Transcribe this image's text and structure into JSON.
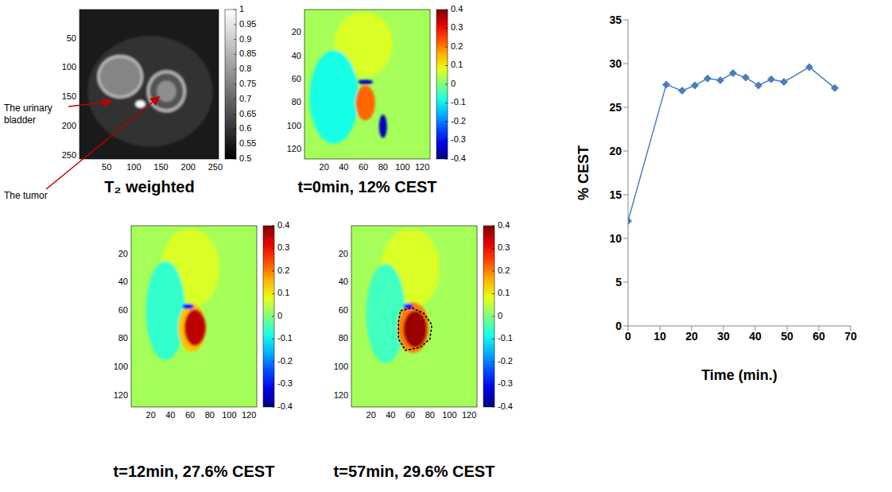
{
  "chart_data": [
    {
      "type": "image",
      "caption": "T₂ weighted",
      "color": "gray",
      "xlim": [
        0,
        256
      ],
      "ylim": [
        0,
        256
      ],
      "xticks": [
        50,
        100,
        150,
        200,
        250
      ],
      "yticks": [
        50,
        100,
        150,
        200,
        250
      ],
      "background": 0.55,
      "regions": [
        {
          "cx": 130,
          "cy": 140,
          "rx": 115,
          "ry": 95,
          "value": 0.6
        },
        {
          "cx": 75,
          "cy": 115,
          "rx": 42,
          "ry": 37,
          "value": 0.88
        },
        {
          "cx": 75,
          "cy": 115,
          "rx": 38,
          "ry": 33,
          "value": 0.76
        },
        {
          "cx": 160,
          "cy": 140,
          "rx": 36,
          "ry": 36,
          "value": 0.86
        },
        {
          "cx": 160,
          "cy": 140,
          "rx": 31,
          "ry": 31,
          "value": 0.66
        },
        {
          "cx": 160,
          "cy": 140,
          "rx": 18,
          "ry": 18,
          "value": 0.78
        },
        {
          "cx": 112,
          "cy": 162,
          "rx": 9,
          "ry": 6,
          "value": 1
        }
      ],
      "colorbar": {
        "range": [
          0.5,
          1
        ],
        "ticks": [
          0.5,
          0.55,
          0.6,
          0.65,
          0.7,
          0.75,
          0.8,
          0.85,
          0.9,
          0.95,
          1
        ]
      },
      "annotations": [
        "The urinary bladder",
        "The tumor"
      ]
    },
    {
      "type": "image",
      "caption": "t=0min, 12% CEST",
      "color": "jet",
      "xlim": [
        0,
        128
      ],
      "ylim": [
        0,
        128
      ],
      "xticks": [
        20,
        40,
        60,
        80,
        100,
        120
      ],
      "yticks": [
        20,
        40,
        60,
        80,
        100,
        120
      ],
      "background": 0.03,
      "regions": [
        {
          "cx": 60,
          "cy": 30,
          "rx": 30,
          "ry": 28,
          "value": 0.07
        },
        {
          "cx": 30,
          "cy": 75,
          "rx": 25,
          "ry": 40,
          "value": -0.08
        },
        {
          "cx": 62,
          "cy": 80,
          "rx": 10,
          "ry": 15,
          "value": 0.22
        },
        {
          "cx": 80,
          "cy": 100,
          "rx": 4,
          "ry": 10,
          "value": -0.35
        },
        {
          "cx": 62,
          "cy": 62,
          "rx": 8,
          "ry": 2,
          "value": -0.35
        }
      ],
      "colorbar": {
        "range": [
          -0.4,
          0.4
        ],
        "ticks": [
          -0.4,
          -0.3,
          -0.2,
          -0.1,
          0,
          0.1,
          0.2,
          0.3,
          0.4
        ]
      }
    },
    {
      "type": "image",
      "caption": "t=12min, 27.6% CEST",
      "color": "jet",
      "xlim": [
        0,
        128
      ],
      "ylim": [
        0,
        128
      ],
      "xticks": [
        20,
        40,
        60,
        80,
        100,
        120
      ],
      "yticks": [
        20,
        40,
        60,
        80,
        100,
        120
      ],
      "background": 0.03,
      "regions": [
        {
          "cx": 60,
          "cy": 30,
          "rx": 30,
          "ry": 28,
          "value": 0.07
        },
        {
          "cx": 35,
          "cy": 60,
          "rx": 20,
          "ry": 35,
          "value": -0.06
        },
        {
          "cx": 62,
          "cy": 72,
          "rx": 14,
          "ry": 17,
          "value": 0.15
        },
        {
          "cx": 65,
          "cy": 72,
          "rx": 11,
          "ry": 13,
          "value": 0.35
        },
        {
          "cx": 58,
          "cy": 57,
          "rx": 6,
          "ry": 2,
          "value": -0.3
        }
      ],
      "colorbar": {
        "range": [
          -0.4,
          0.4
        ],
        "ticks": [
          -0.4,
          -0.3,
          -0.2,
          -0.1,
          0,
          0.1,
          0.2,
          0.3,
          0.4
        ]
      }
    },
    {
      "type": "image",
      "caption": "t=57min, 29.6% CEST",
      "color": "jet",
      "xlim": [
        0,
        128
      ],
      "ylim": [
        0,
        128
      ],
      "xticks": [
        20,
        40,
        60,
        80,
        100,
        120
      ],
      "yticks": [
        20,
        40,
        60,
        80,
        100,
        120
      ],
      "background": 0.03,
      "regions": [
        {
          "cx": 60,
          "cy": 30,
          "rx": 30,
          "ry": 28,
          "value": 0.07
        },
        {
          "cx": 35,
          "cy": 62,
          "rx": 20,
          "ry": 35,
          "value": -0.05
        },
        {
          "cx": 63,
          "cy": 72,
          "rx": 16,
          "ry": 18,
          "value": 0.2
        },
        {
          "cx": 65,
          "cy": 73,
          "rx": 12,
          "ry": 13,
          "value": 0.38
        },
        {
          "cx": 58,
          "cy": 57,
          "rx": 5,
          "ry": 2,
          "value": -0.3
        }
      ],
      "colorbar": {
        "range": [
          -0.4,
          0.4
        ],
        "ticks": [
          -0.4,
          -0.3,
          -0.2,
          -0.1,
          0,
          0.1,
          0.2,
          0.3,
          0.4
        ]
      },
      "roi": [
        [
          50,
          60
        ],
        [
          62,
          58
        ],
        [
          74,
          62
        ],
        [
          82,
          70
        ],
        [
          80,
          80
        ],
        [
          70,
          86
        ],
        [
          55,
          88
        ],
        [
          48,
          80
        ],
        [
          48,
          68
        ]
      ]
    },
    {
      "type": "line",
      "x": [
        0,
        12,
        17,
        21,
        25,
        29,
        33,
        37,
        41,
        45,
        49,
        57,
        65
      ],
      "values": [
        12,
        27.6,
        26.9,
        27.5,
        28.3,
        28.1,
        28.9,
        28.4,
        27.5,
        28.2,
        27.9,
        29.6,
        27.2
      ],
      "color": "#4a7ebb",
      "marker": "diamond",
      "xlim": [
        0,
        70
      ],
      "xticks": [
        0,
        10,
        20,
        30,
        40,
        50,
        60,
        70
      ],
      "ylim": [
        0,
        35
      ],
      "yticks": [
        0,
        5,
        10,
        15,
        20,
        25,
        30,
        35
      ],
      "xlabel": "Time (min.)",
      "ylabel": "% CEST",
      "grid": false
    }
  ]
}
